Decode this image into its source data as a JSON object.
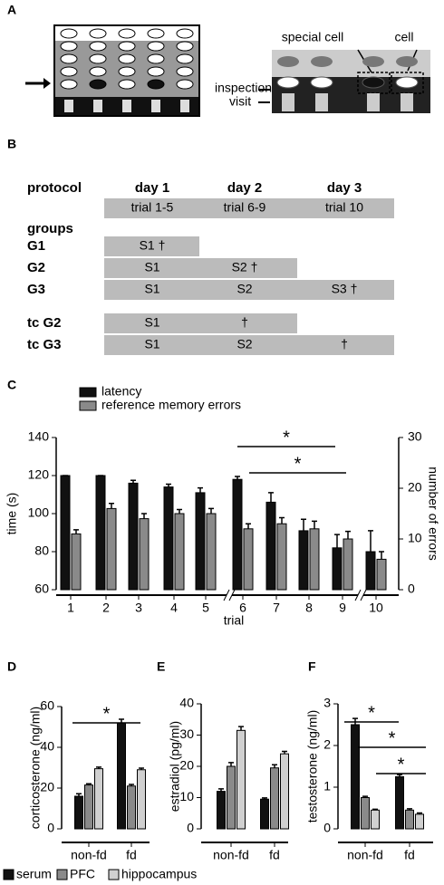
{
  "panel_labels": [
    "A",
    "B",
    "C",
    "D",
    "E",
    "F"
  ],
  "panel_a": {
    "labels": [
      "special cell",
      "cell",
      "inspection",
      "visit"
    ]
  },
  "panel_b": {
    "header": "protocol",
    "days": [
      "day 1",
      "day 2",
      "day 3"
    ],
    "trials": [
      "trial 1-5",
      "trial 6-9",
      "trial 10"
    ],
    "groups_label": "groups",
    "rows": [
      {
        "group": "G1",
        "cells": [
          "S1 †"
        ]
      },
      {
        "group": "G2",
        "cells": [
          "S1",
          "S2 †"
        ]
      },
      {
        "group": "G3",
        "cells": [
          "S1",
          "S2",
          "S3 †"
        ]
      },
      {
        "group": "tc G2",
        "cells": [
          "S1",
          "†"
        ]
      },
      {
        "group": "tc G3",
        "cells": [
          "S1",
          "S2",
          "†"
        ]
      }
    ]
  },
  "legend": [
    {
      "name": "serum",
      "color": "#111111"
    },
    {
      "name": "PFC",
      "color": "#8a8a8a"
    },
    {
      "name": "hippocampus",
      "color": "#d0d0d0"
    }
  ],
  "chart_data": [
    {
      "type": "bar",
      "xlabel": "trial",
      "ylabel": "time (s)",
      "y2label": "number of errors",
      "categories": [
        "1",
        "2",
        "3",
        "4",
        "5",
        "6",
        "7",
        "8",
        "9",
        "10"
      ],
      "series": [
        {
          "name": "latency",
          "color": "#111111",
          "values": [
            120,
            120,
            116,
            114,
            111,
            118,
            106,
            91,
            82,
            80
          ],
          "errors": [
            0,
            0,
            1.5,
            1.5,
            2.5,
            1.5,
            5,
            6,
            7,
            11
          ]
        },
        {
          "name": "reference memory errors",
          "color": "#8a8a8a",
          "axis": "y2",
          "values": [
            11,
            16,
            14,
            15,
            15,
            12,
            13,
            12,
            10,
            6
          ],
          "errors": [
            0.8,
            1,
            1,
            0.8,
            1,
            1,
            1.2,
            1.5,
            1.5,
            1.5
          ]
        }
      ],
      "ylim": [
        60,
        140
      ],
      "yticks": [
        60,
        80,
        100,
        120,
        140
      ],
      "y2lim": [
        0,
        30
      ],
      "y2ticks": [
        0,
        10,
        20,
        30
      ],
      "annotations": [
        "*",
        "*"
      ]
    },
    {
      "type": "bar",
      "ylabel": "corticosterone (ng/ml)",
      "categories": [
        "non-fd",
        "fd"
      ],
      "series": [
        {
          "values": [
            16,
            52
          ],
          "errors": [
            1.2,
            1.8
          ]
        },
        {
          "values": [
            21.5,
            21
          ],
          "errors": [
            0.6,
            0.8
          ]
        },
        {
          "values": [
            29.5,
            29
          ],
          "errors": [
            0.8,
            0.8
          ]
        }
      ],
      "ylim": [
        0,
        60
      ],
      "yticks": [
        0,
        20,
        40,
        60
      ],
      "annotations": [
        "*"
      ]
    },
    {
      "type": "bar",
      "ylabel": "estradiol (pg/ml)",
      "categories": [
        "non-fd",
        "fd"
      ],
      "series": [
        {
          "values": [
            12,
            9.5
          ],
          "errors": [
            0.8,
            0.4
          ]
        },
        {
          "values": [
            20,
            19.5
          ],
          "errors": [
            1.2,
            1
          ]
        },
        {
          "values": [
            31.5,
            24
          ],
          "errors": [
            1.2,
            0.8
          ]
        }
      ],
      "ylim": [
        0,
        40
      ],
      "yticks": [
        0,
        10,
        20,
        30,
        40
      ],
      "annotations": []
    },
    {
      "type": "bar",
      "ylabel": "testosterone (ng/ml)",
      "categories": [
        "non-fd",
        "fd"
      ],
      "series": [
        {
          "values": [
            2.5,
            1.25
          ],
          "errors": [
            0.15,
            0.05
          ]
        },
        {
          "values": [
            0.75,
            0.45
          ],
          "errors": [
            0.03,
            0.03
          ]
        },
        {
          "values": [
            0.45,
            0.35
          ],
          "errors": [
            0.02,
            0.03
          ]
        }
      ],
      "ylim": [
        0,
        3
      ],
      "yticks": [
        0,
        1,
        2,
        3
      ],
      "annotations": [
        "*",
        "*",
        "*"
      ]
    }
  ]
}
